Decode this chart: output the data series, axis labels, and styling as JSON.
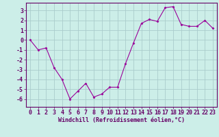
{
  "x": [
    0,
    1,
    2,
    3,
    4,
    5,
    6,
    7,
    8,
    9,
    10,
    11,
    12,
    13,
    14,
    15,
    16,
    17,
    18,
    19,
    20,
    21,
    22,
    23
  ],
  "y": [
    0.0,
    -1.0,
    -0.8,
    -2.8,
    -4.0,
    -6.0,
    -5.2,
    -4.4,
    -5.8,
    -5.5,
    -4.8,
    -4.8,
    -2.4,
    -0.3,
    1.7,
    2.1,
    1.9,
    3.3,
    3.4,
    1.6,
    1.4,
    1.4,
    2.0,
    1.2
  ],
  "line_color": "#990099",
  "marker": "D",
  "marker_size": 1.5,
  "line_width": 0.8,
  "xlabel": "Windchill (Refroidissement éolien,°C)",
  "ylim": [
    -6.8,
    3.8
  ],
  "xlim": [
    -0.5,
    23.5
  ],
  "yticks": [
    -6,
    -5,
    -4,
    -3,
    -2,
    -1,
    0,
    1,
    2,
    3
  ],
  "xtick_labels": [
    "0",
    "1",
    "2",
    "3",
    "4",
    "5",
    "6",
    "7",
    "8",
    "9",
    "10",
    "11",
    "12",
    "13",
    "14",
    "15",
    "16",
    "17",
    "18",
    "19",
    "20",
    "21",
    "22",
    "23"
  ],
  "bg_color": "#cceee8",
  "grid_color": "#aacccc",
  "line_border_color": "#660066",
  "xlabel_color": "#660066",
  "tick_color": "#660066",
  "xlabel_fontsize": 6.0,
  "tick_fontsize": 6.0
}
